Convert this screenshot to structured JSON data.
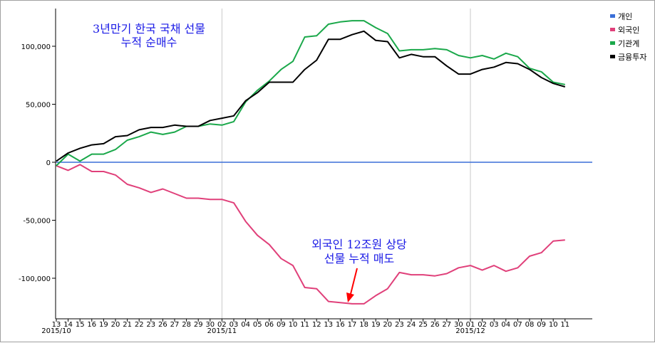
{
  "chart_data": {
    "type": "line",
    "x_labels": [
      "13",
      "14",
      "15",
      "16",
      "19",
      "20",
      "21",
      "22",
      "23",
      "26",
      "27",
      "28",
      "29",
      "30",
      "02",
      "03",
      "04",
      "05",
      "06",
      "09",
      "10",
      "11",
      "12",
      "13",
      "16",
      "17",
      "18",
      "19",
      "20",
      "23",
      "24",
      "25",
      "26",
      "27",
      "30",
      "01",
      "02",
      "03",
      "04",
      "07",
      "08",
      "09",
      "10",
      "11"
    ],
    "month_labels": [
      {
        "label": "2015/10",
        "index": 0
      },
      {
        "label": "2015/11",
        "index": 14
      },
      {
        "label": "2015/12",
        "index": 35
      }
    ],
    "ylim": [
      -130000,
      140000
    ],
    "y_ticks": [
      {
        "value": 100000,
        "label": "100,000"
      },
      {
        "value": 50000,
        "label": "50,000"
      },
      {
        "value": 0,
        "label": "0"
      },
      {
        "value": -50000,
        "label": "-50,000"
      },
      {
        "value": -100000,
        "label": "-100,000"
      }
    ],
    "grid": "vertical lines at month starts",
    "legend_position": "top-right",
    "series": [
      {
        "name": "개인",
        "color": "#3a6fd8",
        "values": [
          0,
          0,
          0,
          0,
          0,
          0,
          0,
          0,
          0,
          0,
          0,
          0,
          0,
          0,
          0,
          0,
          0,
          0,
          0,
          0,
          0,
          0,
          0,
          0,
          0,
          0,
          0,
          0,
          0,
          0,
          0,
          0,
          0,
          0,
          0,
          0,
          0,
          0,
          0,
          0,
          0,
          0,
          0,
          0
        ]
      },
      {
        "name": "외국인",
        "color": "#e0407a",
        "values": [
          -3000,
          -7000,
          -2000,
          -8000,
          -8000,
          -11000,
          -19000,
          -22000,
          -26000,
          -23000,
          -27000,
          -31000,
          -31000,
          -32000,
          -32000,
          -35000,
          -51000,
          -63000,
          -71000,
          -83000,
          -89000,
          -108000,
          -109000,
          -120000,
          -121000,
          -122000,
          -122000,
          -115000,
          -109000,
          -95000,
          -97000,
          -97000,
          -98000,
          -96000,
          -91000,
          -89000,
          -93000,
          -89000,
          -94000,
          -91000,
          -81000,
          -78000,
          -68000,
          -67000
        ]
      },
      {
        "name": "기관계",
        "color": "#1aa84a",
        "values": [
          -3000,
          7000,
          1000,
          7000,
          7000,
          11000,
          19000,
          22000,
          26000,
          24000,
          26000,
          31000,
          31000,
          33000,
          32000,
          35000,
          52000,
          62000,
          70000,
          80000,
          87000,
          108000,
          109000,
          119000,
          121000,
          122000,
          122000,
          116000,
          111000,
          96000,
          97000,
          97000,
          98000,
          97000,
          92000,
          90000,
          92000,
          89000,
          94000,
          91000,
          81000,
          78000,
          69000,
          67000
        ]
      },
      {
        "name": "금융투자",
        "color": "#000000",
        "values": [
          1000,
          8000,
          12000,
          15000,
          16000,
          22000,
          23000,
          28000,
          30000,
          30000,
          32000,
          31000,
          31000,
          36000,
          38000,
          40000,
          53000,
          60000,
          69000,
          69000,
          69000,
          80000,
          88000,
          106000,
          106000,
          110000,
          113000,
          105000,
          104000,
          90000,
          93000,
          91000,
          91000,
          83000,
          76000,
          76000,
          80000,
          82000,
          86000,
          85000,
          80000,
          73000,
          68000,
          65000
        ]
      }
    ],
    "annotations": {
      "title_line1": "3년만기 한국 국채 선물",
      "title_line2": "누적 순매수",
      "foreign_line1": "외국인 12조원 상당",
      "foreign_line2": "선물 누적 매도"
    }
  }
}
